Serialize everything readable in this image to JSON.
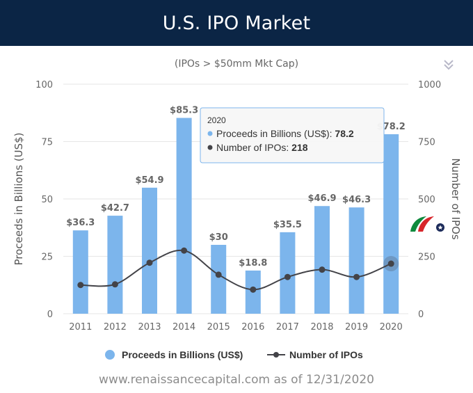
{
  "header": {
    "title": "U.S. IPO Market"
  },
  "footer": {
    "source": "www.renaissancecapital.com as of 12/31/2020"
  },
  "menu_icon": "chevron-double-down-icon",
  "colors": {
    "header_bg": "#0b2545",
    "bar": "#7cb5ec",
    "line": "#434348",
    "logo_green": "#0f8a3d",
    "logo_red": "#d7262b",
    "logo_navy": "#1c2b5a"
  },
  "chart_data": {
    "type": "bar",
    "title": "",
    "subtitle": "(IPOs > $50mm Mkt Cap)",
    "categories": [
      "2011",
      "2012",
      "2013",
      "2014",
      "2015",
      "2016",
      "2017",
      "2018",
      "2019",
      "2020"
    ],
    "series": [
      {
        "name": "Proceeds in Billions (US$)",
        "type": "bar",
        "axis": "left",
        "values": [
          36.3,
          42.7,
          54.9,
          85.3,
          30,
          18.8,
          35.5,
          46.9,
          46.3,
          78.2
        ],
        "data_labels": [
          "$36.3",
          "$42.7",
          "$54.9",
          "$85.3",
          "$30",
          "$18.8",
          "$35.5",
          "$46.9",
          "$46.3",
          "$78.2"
        ]
      },
      {
        "name": "Number of IPOs",
        "type": "line",
        "axis": "right",
        "values": [
          125,
          128,
          222,
          275,
          170,
          105,
          160,
          192,
          160,
          218
        ]
      }
    ],
    "y_left": {
      "label": "Proceeds in Billions (US$)",
      "ylim": [
        0,
        100
      ],
      "ticks": [
        "0",
        "25",
        "50",
        "75",
        "100"
      ]
    },
    "y_right": {
      "label": "Number of IPOs",
      "ylim": [
        0,
        1000
      ],
      "ticks": [
        "0",
        "250",
        "500",
        "750",
        "1000"
      ]
    },
    "grid": true,
    "legend": {
      "position": "bottom",
      "items": [
        "Proceeds in Billions (US$)",
        "Number of IPOs"
      ]
    },
    "tooltip": {
      "category": "2020",
      "lines": [
        {
          "label": "Proceeds in Billions (US$): ",
          "value": "78.2"
        },
        {
          "label": "Number of IPOs: ",
          "value": "218"
        }
      ]
    }
  }
}
